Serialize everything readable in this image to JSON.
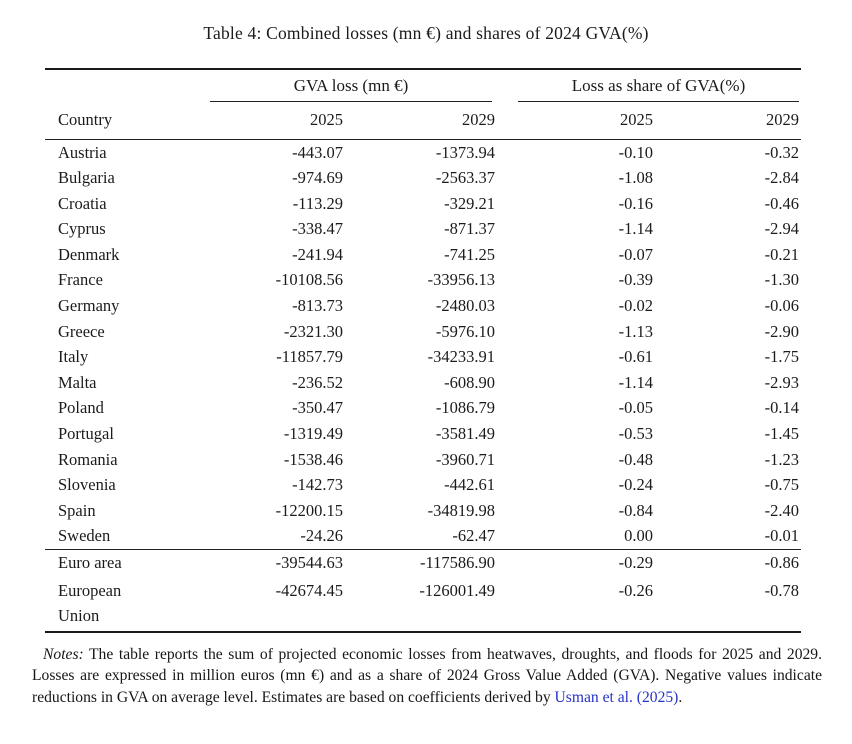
{
  "title": "Table 4: Combined losses (mn €) and shares of 2024 GVA(%)",
  "table": {
    "group_headers": {
      "gva_loss": "GVA loss (mn €)",
      "share": "Loss as share of GVA(%)"
    },
    "country_header": "Country",
    "year_headers": {
      "gva_2025": "2025",
      "gva_2029": "2029",
      "share_2025": "2025",
      "share_2029": "2029"
    },
    "rows": [
      {
        "country": "Austria",
        "gva_2025": "-443.07",
        "gva_2029": "-1373.94",
        "share_2025": "-0.10",
        "share_2029": "-0.32"
      },
      {
        "country": "Bulgaria",
        "gva_2025": "-974.69",
        "gva_2029": "-2563.37",
        "share_2025": "-1.08",
        "share_2029": "-2.84"
      },
      {
        "country": "Croatia",
        "gva_2025": "-113.29",
        "gva_2029": "-329.21",
        "share_2025": "-0.16",
        "share_2029": "-0.46"
      },
      {
        "country": "Cyprus",
        "gva_2025": "-338.47",
        "gva_2029": "-871.37",
        "share_2025": "-1.14",
        "share_2029": "-2.94"
      },
      {
        "country": "Denmark",
        "gva_2025": "-241.94",
        "gva_2029": "-741.25",
        "share_2025": "-0.07",
        "share_2029": "-0.21"
      },
      {
        "country": "France",
        "gva_2025": "-10108.56",
        "gva_2029": "-33956.13",
        "share_2025": "-0.39",
        "share_2029": "-1.30"
      },
      {
        "country": "Germany",
        "gva_2025": "-813.73",
        "gva_2029": "-2480.03",
        "share_2025": "-0.02",
        "share_2029": "-0.06"
      },
      {
        "country": "Greece",
        "gva_2025": "-2321.30",
        "gva_2029": "-5976.10",
        "share_2025": "-1.13",
        "share_2029": "-2.90"
      },
      {
        "country": "Italy",
        "gva_2025": "-11857.79",
        "gva_2029": "-34233.91",
        "share_2025": "-0.61",
        "share_2029": "-1.75"
      },
      {
        "country": "Malta",
        "gva_2025": "-236.52",
        "gva_2029": "-608.90",
        "share_2025": "-1.14",
        "share_2029": "-2.93"
      },
      {
        "country": "Poland",
        "gva_2025": "-350.47",
        "gva_2029": "-1086.79",
        "share_2025": "-0.05",
        "share_2029": "-0.14"
      },
      {
        "country": "Portugal",
        "gva_2025": "-1319.49",
        "gva_2029": "-3581.49",
        "share_2025": "-0.53",
        "share_2029": "-1.45"
      },
      {
        "country": "Romania",
        "gva_2025": "-1538.46",
        "gva_2029": "-3960.71",
        "share_2025": "-0.48",
        "share_2029": "-1.23"
      },
      {
        "country": "Slovenia",
        "gva_2025": "-142.73",
        "gva_2029": "-442.61",
        "share_2025": "-0.24",
        "share_2029": "-0.75"
      },
      {
        "country": "Spain",
        "gva_2025": "-12200.15",
        "gva_2029": "-34819.98",
        "share_2025": "-0.84",
        "share_2029": "-2.40"
      },
      {
        "country": "Sweden",
        "gva_2025": "-24.26",
        "gva_2029": "-62.47",
        "share_2025": "0.00",
        "share_2029": "-0.01"
      }
    ],
    "summary_rows": [
      {
        "country": "Euro area",
        "gva_2025": "-39544.63",
        "gva_2029": "-117586.90",
        "share_2025": "-0.29",
        "share_2029": "-0.86"
      },
      {
        "country": "European Union",
        "gva_2025": "-42674.45",
        "gva_2029": "-126001.49",
        "share_2025": "-0.26",
        "share_2029": "-0.78"
      }
    ]
  },
  "notes": {
    "label": "Notes:",
    "text_before_link": " The table reports the sum of projected economic losses from heatwaves, droughts, and floods for 2025 and 2029. Losses are expressed in million euros (mn €) and as a share of 2024 Gross Value Added (GVA). Negative values indicate reductions in GVA on average level. Estimates are based on coefficients derived by ",
    "link_text": "Usman et al. (2025)",
    "text_after_link": ".",
    "link_color": "#2633c8",
    "text_color": "#1b1b1b"
  }
}
